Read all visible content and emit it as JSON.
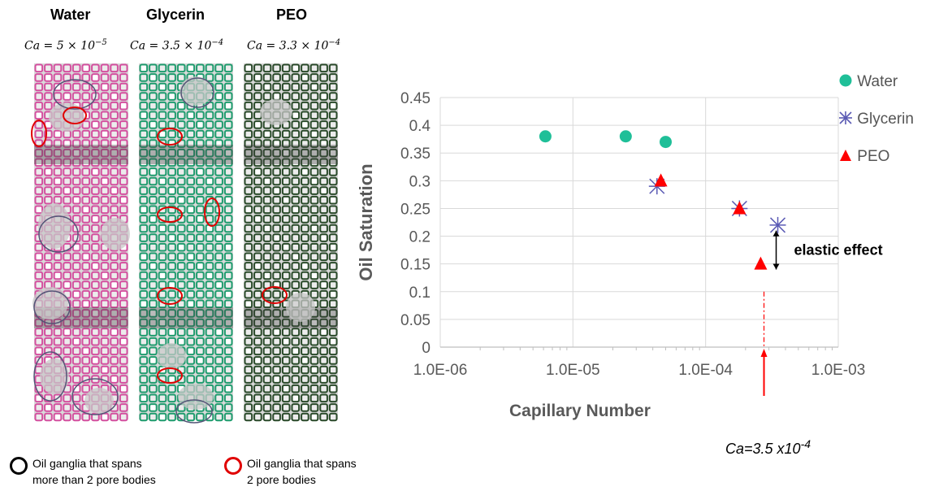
{
  "left_panels": [
    {
      "title": "Water",
      "ca_prefix": "Ca = 5 × 10",
      "ca_exp": "−5",
      "color": "#d4509f"
    },
    {
      "title": "Glycerin",
      "ca_prefix": "Ca = 3.5 × 10",
      "ca_exp": "−4",
      "color": "#1f9c6e"
    },
    {
      "title": "PEO",
      "ca_prefix": "Ca = 3.3 × 10",
      "ca_exp": "−4",
      "color": "#2a4a2a"
    }
  ],
  "circle_legend": [
    {
      "color": "#000000",
      "line1": "Oil ganglia that spans",
      "line2": "more than 2 pore bodies"
    },
    {
      "color": "#e00000",
      "line1": "Oil ganglia that spans",
      "line2": "2 pore bodies"
    }
  ],
  "chart_data": {
    "type": "scatter",
    "xscale": "log",
    "xlim": [
      1e-06,
      0.001
    ],
    "ylim": [
      0,
      0.45
    ],
    "xlabel": "Capillary Number",
    "ylabel": "Oil Saturation",
    "x_ticks": [
      "1.0E-06",
      "1.0E-05",
      "1.0E-04",
      "1.0E-03"
    ],
    "y_ticks": [
      "0",
      "0.05",
      "0.1",
      "0.15",
      "0.2",
      "0.25",
      "0.3",
      "0.35",
      "0.4",
      "0.45"
    ],
    "grid": true,
    "legend_position": "right",
    "series": [
      {
        "name": "Water",
        "marker": "circle",
        "color": "#1fbf98",
        "points": [
          [
            6.2e-06,
            0.38
          ],
          [
            2.5e-05,
            0.38
          ],
          [
            5e-05,
            0.37
          ]
        ]
      },
      {
        "name": "Glycerin",
        "marker": "asterisk",
        "color": "#5a5ab4",
        "points": [
          [
            4.3e-05,
            0.29
          ],
          [
            0.00018,
            0.25
          ],
          [
            0.00035,
            0.22
          ]
        ]
      },
      {
        "name": "PEO",
        "marker": "triangle",
        "color": "#ff0000",
        "points": [
          [
            4.6e-05,
            0.3
          ],
          [
            0.00018,
            0.25
          ],
          [
            0.00026,
            0.15
          ]
        ]
      }
    ],
    "annotations": {
      "elastic_effect": "elastic effect",
      "ca_note_prefix": "Ca=3.5 x10",
      "ca_note_exp": "-4"
    }
  }
}
